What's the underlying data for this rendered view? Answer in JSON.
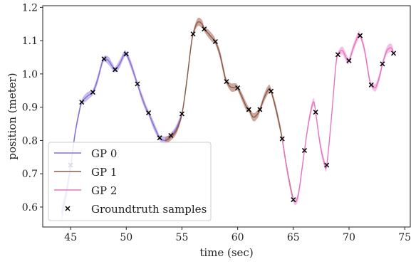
{
  "chart_data": {
    "type": "line",
    "xlabel": "time (sec)",
    "ylabel": "position (meter)",
    "xlim": [
      42.5,
      75.5
    ],
    "ylim": [
      0.54,
      1.205
    ],
    "xticks": [
      45,
      50,
      55,
      60,
      65,
      70,
      75
    ],
    "xtick_labels": [
      "45",
      "50",
      "55",
      "60",
      "65",
      "70",
      "75"
    ],
    "yticks": [
      0.6,
      0.7,
      0.8,
      0.9,
      1.0,
      1.1,
      1.2
    ],
    "ytick_labels": [
      "0.6",
      "0.7",
      "0.8",
      "0.9",
      "1.0",
      "1.1",
      "1.2"
    ],
    "grid": false,
    "legend_position": "lower-left",
    "series": [
      {
        "name": "GP 0",
        "color": "#8a6fd1",
        "band_color": "#b3a1e6",
        "x": [
          44.2,
          44.6,
          45.0,
          45.4,
          45.8,
          46.0,
          46.4,
          46.8,
          47.0,
          47.4,
          47.8,
          48.0,
          48.4,
          48.8,
          49.0,
          49.4,
          49.8,
          50.0,
          50.4,
          50.8,
          51.0,
          51.4,
          51.8,
          52.0,
          52.4,
          52.8,
          53.0,
          53.4,
          53.8,
          54.0,
          54.4,
          54.8,
          55.0
        ],
        "y": [
          0.58,
          0.64,
          0.72,
          0.82,
          0.89,
          0.915,
          0.93,
          0.94,
          0.945,
          0.98,
          1.03,
          1.045,
          1.04,
          1.02,
          1.013,
          1.03,
          1.058,
          1.06,
          1.03,
          0.99,
          0.97,
          0.93,
          0.895,
          0.883,
          0.85,
          0.82,
          0.808,
          0.8,
          0.805,
          0.815,
          0.83,
          0.86,
          0.88
        ],
        "band": [
          0.025,
          0.02,
          0.015,
          0.012,
          0.01,
          0.008,
          0.012,
          0.01,
          0.008,
          0.012,
          0.01,
          0.008,
          0.012,
          0.01,
          0.008,
          0.012,
          0.01,
          0.008,
          0.012,
          0.01,
          0.008,
          0.012,
          0.01,
          0.008,
          0.012,
          0.01,
          0.008,
          0.012,
          0.01,
          0.008,
          0.01,
          0.01,
          0.01
        ]
      },
      {
        "name": "GP 1",
        "color": "#8b5a4a",
        "band_color": "#b98a7c",
        "x": [
          53.5,
          54.0,
          54.5,
          55.0,
          55.4,
          55.8,
          56.0,
          56.4,
          56.8,
          57.0,
          57.4,
          57.8,
          58.0,
          58.4,
          58.8,
          59.0,
          59.4,
          59.8,
          60.0,
          60.4,
          60.8,
          61.0,
          61.4,
          61.8,
          62.0,
          62.4,
          62.8,
          63.0,
          63.4,
          63.8,
          64.0,
          64.4,
          64.8,
          65.0
        ],
        "y": [
          0.8,
          0.81,
          0.83,
          0.88,
          0.97,
          1.08,
          1.12,
          1.155,
          1.15,
          1.135,
          1.12,
          1.105,
          1.097,
          1.06,
          1.0,
          0.977,
          0.96,
          0.96,
          0.958,
          0.93,
          0.9,
          0.893,
          0.87,
          0.88,
          0.893,
          0.93,
          0.955,
          0.948,
          0.9,
          0.84,
          0.805,
          0.72,
          0.65,
          0.622
        ],
        "band": [
          0.01,
          0.01,
          0.01,
          0.008,
          0.012,
          0.012,
          0.008,
          0.012,
          0.012,
          0.008,
          0.012,
          0.012,
          0.008,
          0.012,
          0.012,
          0.008,
          0.012,
          0.012,
          0.008,
          0.012,
          0.012,
          0.008,
          0.012,
          0.012,
          0.008,
          0.012,
          0.012,
          0.008,
          0.012,
          0.012,
          0.008,
          0.01,
          0.01,
          0.008
        ]
      },
      {
        "name": "GP 2",
        "color": "#e377c2",
        "band_color": "#f0a8dc",
        "x": [
          64.0,
          64.5,
          65.0,
          65.4,
          65.8,
          66.0,
          66.4,
          66.8,
          67.0,
          67.4,
          67.8,
          68.0,
          68.4,
          68.8,
          69.0,
          69.4,
          69.8,
          70.0,
          70.4,
          70.8,
          71.0,
          71.4,
          71.8,
          72.0,
          72.4,
          72.8,
          73.0,
          73.4,
          73.8,
          74.0
        ],
        "y": [
          0.805,
          0.7,
          0.622,
          0.63,
          0.72,
          0.77,
          0.86,
          0.915,
          0.885,
          0.79,
          0.73,
          0.726,
          0.86,
          1.02,
          1.058,
          1.07,
          1.045,
          1.04,
          1.08,
          1.112,
          1.115,
          1.07,
          0.99,
          0.967,
          0.96,
          1.0,
          1.03,
          1.07,
          1.078,
          1.062
        ],
        "band": [
          0.01,
          0.01,
          0.008,
          0.012,
          0.012,
          0.008,
          0.012,
          0.012,
          0.008,
          0.012,
          0.012,
          0.008,
          0.012,
          0.012,
          0.008,
          0.012,
          0.012,
          0.008,
          0.012,
          0.012,
          0.008,
          0.012,
          0.012,
          0.008,
          0.012,
          0.012,
          0.008,
          0.012,
          0.012,
          0.008
        ]
      }
    ],
    "samples": {
      "name": "Groundtruth samples",
      "x": [
        45,
        46,
        47,
        48,
        49,
        50,
        51,
        52,
        53,
        54,
        55,
        56,
        57,
        58,
        59,
        60,
        61,
        62,
        63,
        64,
        65,
        66,
        67,
        68,
        69,
        70,
        71,
        72,
        73,
        74
      ],
      "y": [
        0.726,
        0.915,
        0.945,
        1.045,
        1.013,
        1.06,
        0.97,
        0.883,
        0.808,
        0.815,
        0.88,
        1.12,
        1.135,
        1.097,
        0.977,
        0.958,
        0.893,
        0.893,
        0.948,
        0.805,
        0.622,
        0.77,
        0.885,
        0.726,
        1.058,
        1.04,
        1.115,
        0.967,
        1.03,
        1.062
      ]
    }
  }
}
